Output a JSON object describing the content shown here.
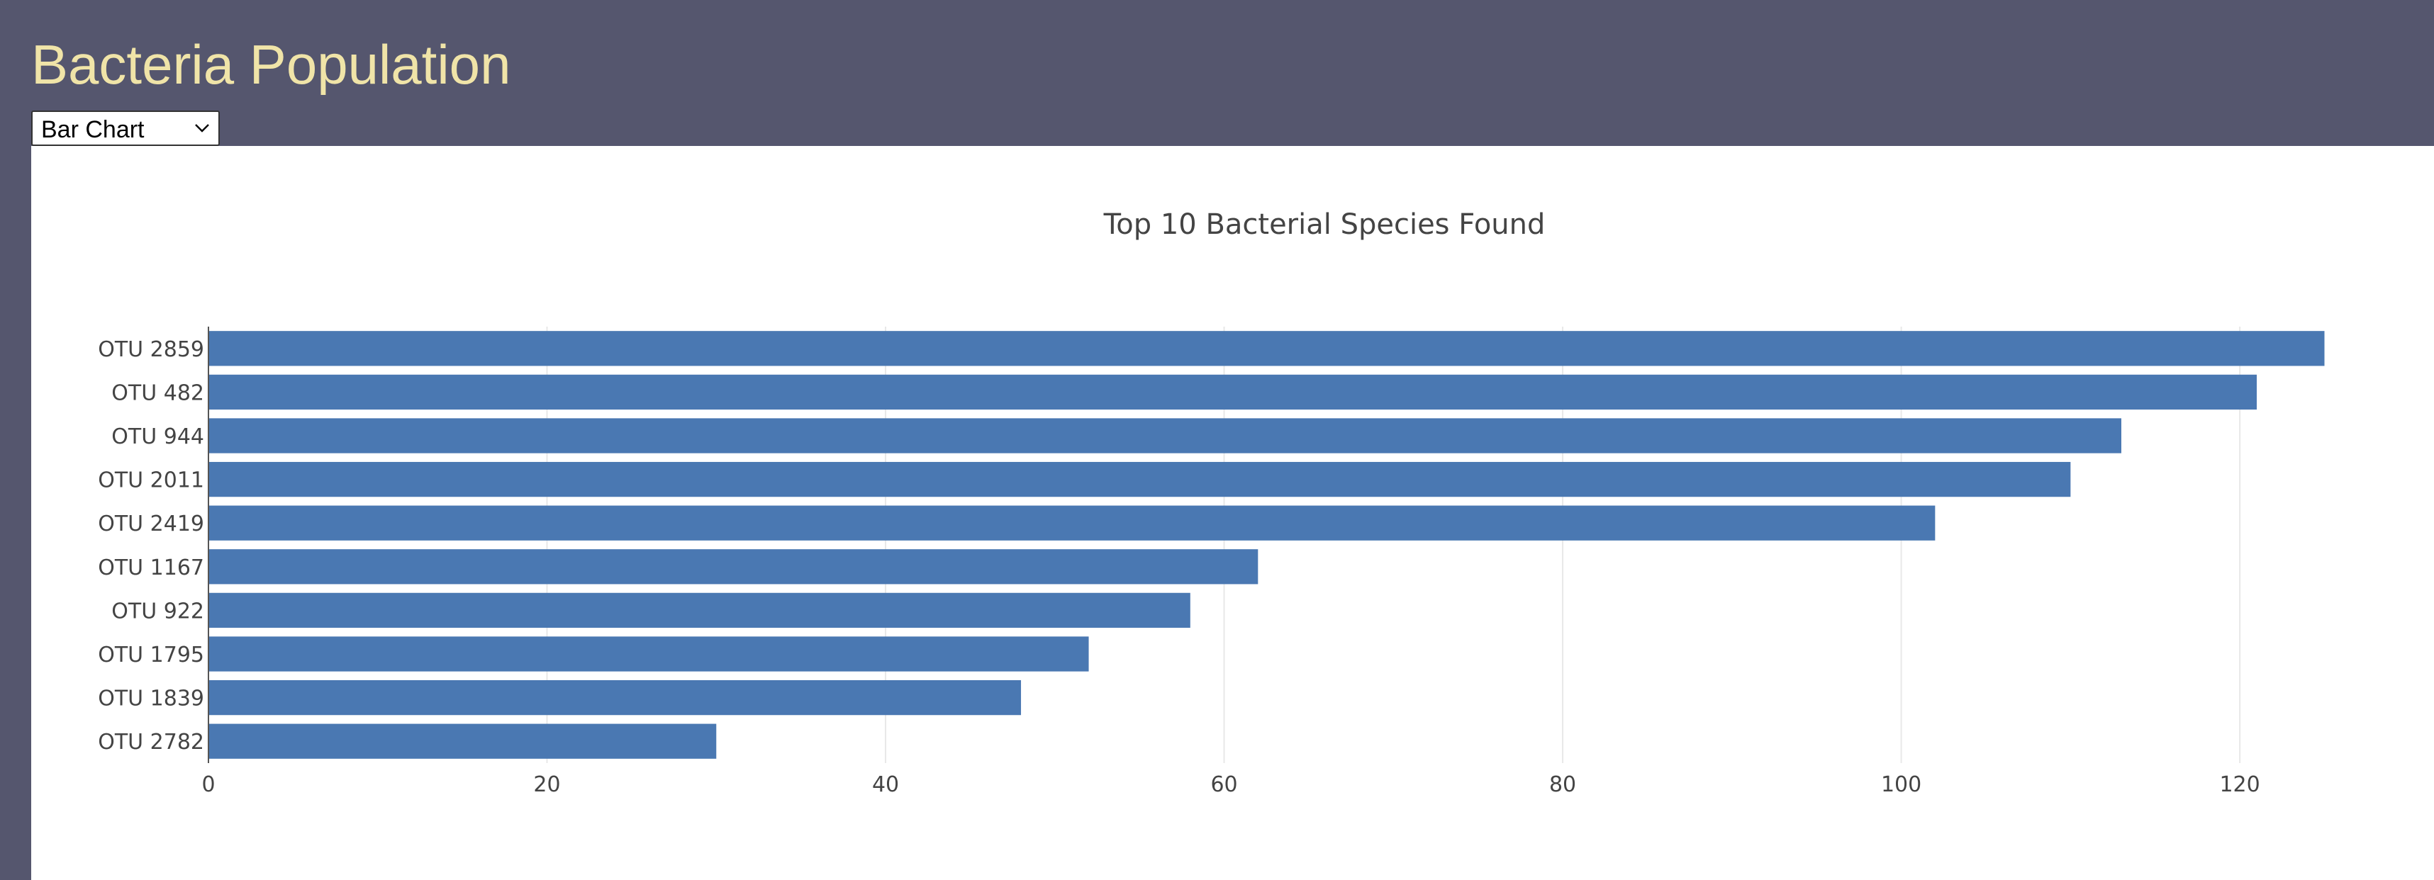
{
  "header": {
    "title": "Bacteria Population"
  },
  "chart_selector": {
    "selected": "Bar Chart"
  },
  "colors": {
    "header_background": "#55566e",
    "title_color": "#f0e4a8",
    "bar_color": "#4a78b2",
    "panel_background": "#ffffff",
    "grid_color": "#e8e8e8",
    "text_color": "#444444"
  },
  "chart_data": {
    "type": "bar",
    "orientation": "horizontal",
    "title": "Top 10 Bacterial Species Found",
    "xlabel": "",
    "ylabel": "",
    "categories": [
      "OTU 2859",
      "OTU 482",
      "OTU 944",
      "OTU 2011",
      "OTU 2419",
      "OTU 1167",
      "OTU 922",
      "OTU 1795",
      "OTU 1839",
      "OTU 2782"
    ],
    "values": [
      125,
      121,
      113,
      110,
      102,
      62,
      58,
      52,
      48,
      30
    ],
    "x_ticks": [
      0,
      20,
      40,
      60,
      80,
      100,
      120
    ],
    "xlim": [
      0,
      129
    ],
    "grid": true,
    "legend": "none"
  }
}
